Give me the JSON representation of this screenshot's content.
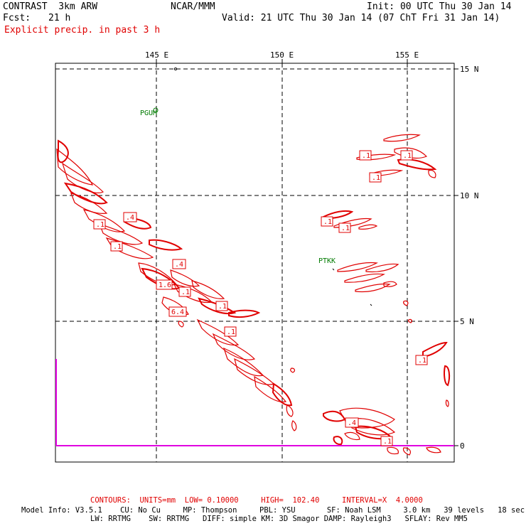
{
  "header": {
    "model": "CONTRAST  3km ARW",
    "agency": "NCAR/MMM",
    "init": "Init: 00 UTC Thu 30 Jan 14",
    "fcst_label": "Fcst:",
    "fcst_value": "21 h",
    "valid": "Valid: 21 UTC Thu 30 Jan 14 (07 ChT Fri 31 Jan 14)",
    "field": "Explicit precip. in past 3 h"
  },
  "map": {
    "lon_labels": [
      "145 E",
      "150 E",
      "155 E"
    ],
    "lat_labels": [
      "15 N",
      "10 N",
      "5 N",
      "0"
    ],
    "stations": [
      "PGUM",
      "PTKK"
    ],
    "contour_labels": [
      ".1",
      ".4",
      ".1",
      ".1",
      ".4",
      "1.6",
      ".1",
      "6.4",
      ".1",
      ".1",
      ".1",
      ".1",
      ".1",
      ".1",
      ".1",
      ".4",
      ".1"
    ],
    "colors": {
      "contour": "#e00000",
      "grid": "#000000",
      "station": "#007a00",
      "magenta": "#e000e0"
    }
  },
  "footer": {
    "contours": "CONTOURS:  UNITS=mm  LOW= 0.10000     HIGH=  102.40     INTERVAL=X  4.0000",
    "model_info_1": "Model Info: V3.5.1    CU: No Cu     MP: Thompson     PBL: YSU       SF: Noah LSM     3.0 km   39 levels   18 sec",
    "model_info_2": "LW: RRTMG    SW: RRTMG   DIFF: simple KM: 3D Smagor DAMP: Rayleigh3   SFLAY: Rev MM5"
  }
}
